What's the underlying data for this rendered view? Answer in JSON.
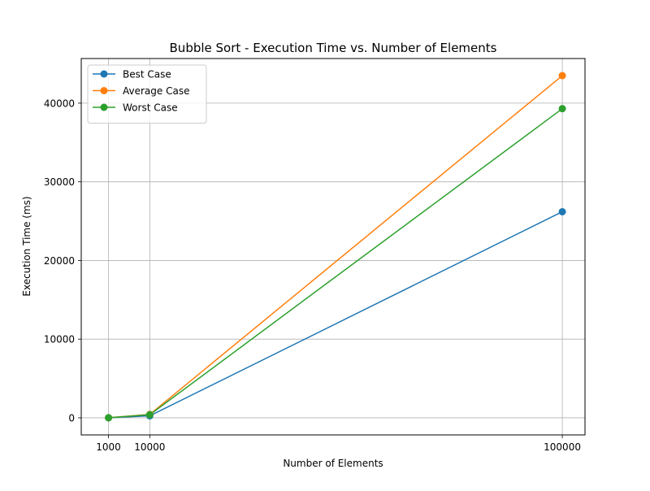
{
  "chart_data": {
    "type": "line",
    "title": "Bubble Sort - Execution Time vs. Number of Elements",
    "xlabel": "Number of Elements",
    "ylabel": "Execution Time (ms)",
    "x": [
      1000,
      10000,
      100000
    ],
    "x_ticks": [
      1000,
      10000,
      100000
    ],
    "x_tick_labels": [
      "1000",
      "10000",
      "100000"
    ],
    "y_ticks": [
      0,
      10000,
      20000,
      30000,
      40000
    ],
    "y_tick_labels": [
      "0",
      "10000",
      "20000",
      "30000",
      "40000"
    ],
    "xlim": [
      -4950,
      104950
    ],
    "ylim": [
      -2175,
      45675
    ],
    "grid": true,
    "legend_position": "top-left",
    "series": [
      {
        "name": "Best Case",
        "color": "#1f77b4",
        "marker": "circle",
        "values": [
          2,
          250,
          26200
        ]
      },
      {
        "name": "Average Case",
        "color": "#ff7f0e",
        "marker": "circle",
        "values": [
          4,
          430,
          43500
        ]
      },
      {
        "name": "Worst Case",
        "color": "#2ca02c",
        "marker": "circle",
        "values": [
          3,
          390,
          39300
        ]
      }
    ]
  }
}
